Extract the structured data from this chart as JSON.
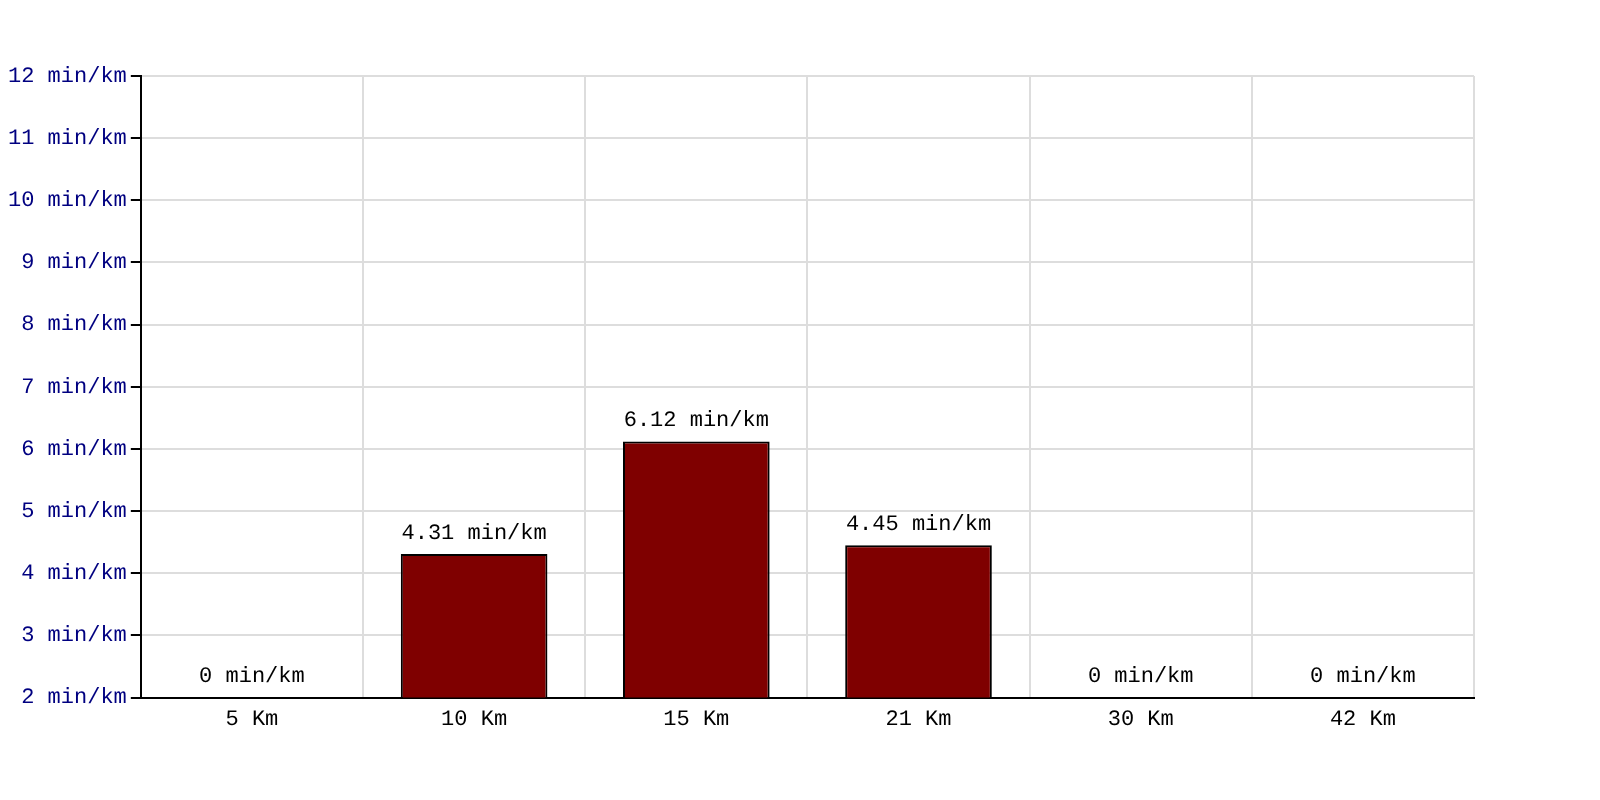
{
  "chart_data": {
    "type": "bar",
    "categories": [
      "5 Km",
      "10 Km",
      "15 Km",
      "21 Km",
      "30 Km",
      "42 Km"
    ],
    "values": [
      null,
      4.31,
      6.12,
      4.45,
      null,
      null
    ],
    "value_labels": [
      "0 min/km",
      "4.31 min/km",
      "6.12 min/km",
      "4.45 min/km",
      "0 min/km",
      "0 min/km"
    ],
    "color": "#7f0000",
    "ylim": [
      2,
      12
    ],
    "yticks": [
      {
        "value": 2,
        "label": "2 min/km"
      },
      {
        "value": 3,
        "label": "3 min/km"
      },
      {
        "value": 4,
        "label": "4 min/km"
      },
      {
        "value": 5,
        "label": "5 min/km"
      },
      {
        "value": 6,
        "label": "6 min/km"
      },
      {
        "value": 7,
        "label": "7 min/km"
      },
      {
        "value": 8,
        "label": "8 min/km"
      },
      {
        "value": 9,
        "label": "9 min/km"
      },
      {
        "value": 10,
        "label": "10 min/km"
      },
      {
        "value": 11,
        "label": "11 min/km"
      },
      {
        "value": 12,
        "label": "12 min/km"
      }
    ],
    "grid": true,
    "legend": false
  }
}
